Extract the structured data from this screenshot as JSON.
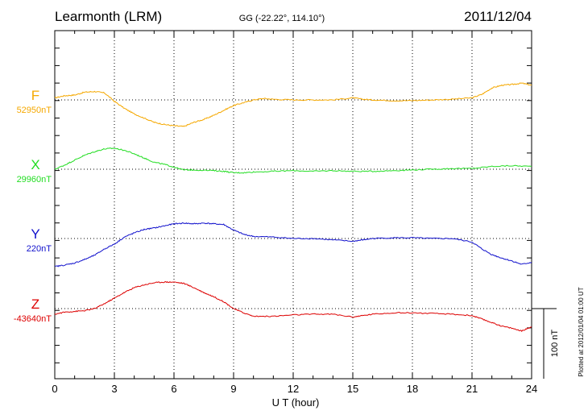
{
  "header": {
    "station": "Learmonth (LRM)",
    "coords": "GG (-22.22°, 114.10°)",
    "date": "2011/12/04"
  },
  "footer": {
    "plotted_note": "Plotted at 2012/01/04 01:00 UT",
    "scale_label": "100 nT"
  },
  "colors": {
    "F": "#f5a800",
    "X": "#22dd22",
    "Y": "#1010cc",
    "Z": "#dd0000",
    "grid": "#000000"
  },
  "chart_data": {
    "type": "line",
    "title": "Learmonth (LRM)",
    "xlabel": "U T (hour)",
    "ylabel": "",
    "xlim": [
      0,
      24
    ],
    "xticks": [
      0,
      3,
      6,
      9,
      12,
      15,
      18,
      21,
      24
    ],
    "scale_nT": 100,
    "grid": true,
    "series": [
      {
        "name": "F",
        "baseline_label": "52950nT",
        "baseline": 52950,
        "points": [
          [
            0,
            52953
          ],
          [
            0.5,
            52956
          ],
          [
            1,
            52957
          ],
          [
            1.5,
            52961
          ],
          [
            2,
            52962
          ],
          [
            2.5,
            52960
          ],
          [
            3,
            52948
          ],
          [
            3.5,
            52938
          ],
          [
            4,
            52930
          ],
          [
            4.5,
            52924
          ],
          [
            5,
            52918
          ],
          [
            5.5,
            52915
          ],
          [
            6,
            52913
          ],
          [
            6.5,
            52912
          ],
          [
            7,
            52918
          ],
          [
            7.5,
            52922
          ],
          [
            8,
            52928
          ],
          [
            8.5,
            52935
          ],
          [
            9,
            52942
          ],
          [
            9.5,
            52946
          ],
          [
            10,
            52950
          ],
          [
            10.5,
            52952
          ],
          [
            11,
            52951
          ],
          [
            12,
            52950
          ],
          [
            13,
            52950
          ],
          [
            14,
            52950
          ],
          [
            15,
            52953
          ],
          [
            15.5,
            52951
          ],
          [
            16,
            52950
          ],
          [
            17,
            52949
          ],
          [
            18,
            52949
          ],
          [
            19,
            52950
          ],
          [
            20,
            52951
          ],
          [
            21,
            52953
          ],
          [
            21.5,
            52958
          ],
          [
            22,
            52967
          ],
          [
            22.5,
            52971
          ],
          [
            23,
            52972
          ],
          [
            23.5,
            52974
          ],
          [
            24,
            52971
          ]
        ]
      },
      {
        "name": "X",
        "baseline_label": "29960nT",
        "baseline": 29960,
        "points": [
          [
            0,
            29960
          ],
          [
            0.5,
            29966
          ],
          [
            1,
            29973
          ],
          [
            1.5,
            29980
          ],
          [
            2,
            29985
          ],
          [
            2.5,
            29989
          ],
          [
            3,
            29990
          ],
          [
            3.5,
            29987
          ],
          [
            4,
            29982
          ],
          [
            4.5,
            29976
          ],
          [
            5,
            29970
          ],
          [
            5.5,
            29967
          ],
          [
            6,
            29963
          ],
          [
            6.5,
            29959
          ],
          [
            7,
            29959
          ],
          [
            8,
            29958
          ],
          [
            8.5,
            29957
          ],
          [
            9,
            29955
          ],
          [
            9.5,
            29955
          ],
          [
            10,
            29956
          ],
          [
            11,
            29957
          ],
          [
            12,
            29958
          ],
          [
            13,
            29957
          ],
          [
            14,
            29958
          ],
          [
            15,
            29957
          ],
          [
            16,
            29957
          ],
          [
            17,
            29958
          ],
          [
            18,
            29959
          ],
          [
            19,
            29960
          ],
          [
            20,
            29961
          ],
          [
            21,
            29961
          ],
          [
            22,
            29964
          ],
          [
            23,
            29965
          ],
          [
            24,
            29964
          ]
        ]
      },
      {
        "name": "Y",
        "baseline_label": "220nT",
        "baseline": 220,
        "points": [
          [
            0,
            180
          ],
          [
            0.5,
            182
          ],
          [
            1,
            185
          ],
          [
            1.5,
            190
          ],
          [
            2,
            196
          ],
          [
            2.5,
            205
          ],
          [
            3,
            212
          ],
          [
            3.5,
            222
          ],
          [
            4,
            228
          ],
          [
            4.5,
            233
          ],
          [
            5,
            235
          ],
          [
            5.5,
            238
          ],
          [
            6,
            241
          ],
          [
            6.5,
            242
          ],
          [
            7,
            241
          ],
          [
            7.5,
            242
          ],
          [
            8,
            241
          ],
          [
            8.5,
            240
          ],
          [
            9,
            232
          ],
          [
            9.5,
            226
          ],
          [
            10,
            223
          ],
          [
            11,
            222
          ],
          [
            12,
            220
          ],
          [
            13,
            220
          ],
          [
            14,
            218
          ],
          [
            15,
            216
          ],
          [
            15.5,
            218
          ],
          [
            16,
            220
          ],
          [
            17,
            221
          ],
          [
            18,
            221
          ],
          [
            19,
            220
          ],
          [
            20,
            220
          ],
          [
            21,
            215
          ],
          [
            21.5,
            205
          ],
          [
            22,
            197
          ],
          [
            22.5,
            192
          ],
          [
            23,
            188
          ],
          [
            23.5,
            183
          ],
          [
            24,
            186
          ]
        ]
      },
      {
        "name": "Z",
        "baseline_label": "-43640nT",
        "baseline": -43640,
        "points": [
          [
            0,
            -43648
          ],
          [
            0.5,
            -43645
          ],
          [
            1,
            -43644
          ],
          [
            1.5,
            -43643
          ],
          [
            2,
            -43640
          ],
          [
            2.5,
            -43633
          ],
          [
            3,
            -43625
          ],
          [
            3.5,
            -43617
          ],
          [
            4,
            -43610
          ],
          [
            4.5,
            -43606
          ],
          [
            5,
            -43603
          ],
          [
            5.5,
            -43602
          ],
          [
            6,
            -43602
          ],
          [
            6.5,
            -43604
          ],
          [
            7,
            -43610
          ],
          [
            7.5,
            -43617
          ],
          [
            8,
            -43623
          ],
          [
            8.5,
            -43630
          ],
          [
            9,
            -43640
          ],
          [
            9.5,
            -43646
          ],
          [
            10,
            -43651
          ],
          [
            11,
            -43651
          ],
          [
            12,
            -43649
          ],
          [
            13,
            -43648
          ],
          [
            14,
            -43648
          ],
          [
            15,
            -43652
          ],
          [
            15.5,
            -43650
          ],
          [
            16,
            -43648
          ],
          [
            17,
            -43646
          ],
          [
            18,
            -43646
          ],
          [
            19,
            -43647
          ],
          [
            20,
            -43648
          ],
          [
            21,
            -43650
          ],
          [
            21.5,
            -43655
          ],
          [
            22,
            -43660
          ],
          [
            22.5,
            -43665
          ],
          [
            23,
            -43668
          ],
          [
            23.5,
            -43672
          ],
          [
            24,
            -43666
          ]
        ]
      }
    ]
  }
}
